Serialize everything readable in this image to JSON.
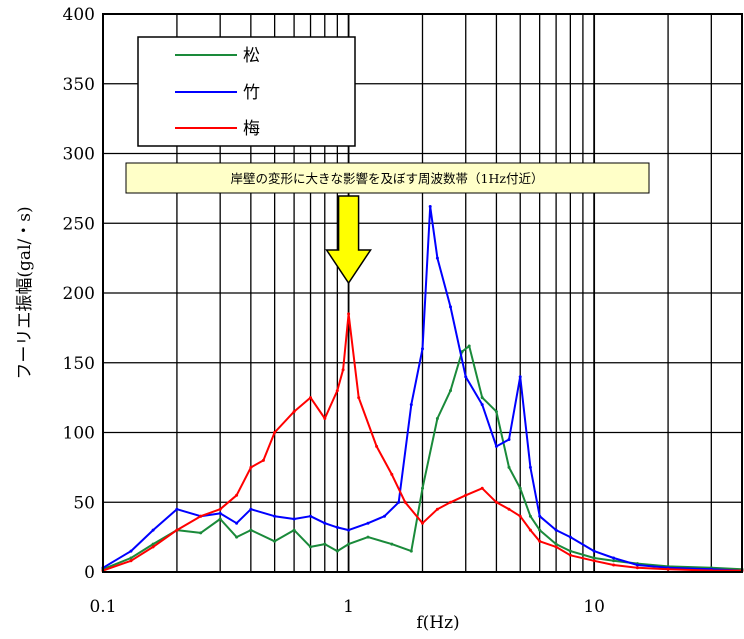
{
  "chart_data": {
    "type": "line",
    "title": "",
    "xlabel": "f(Hz)",
    "ylabel": "フーリエ振幅(gal/・s)",
    "x_scale": "log",
    "xlim": [
      0.1,
      40
    ],
    "ylim": [
      0,
      400
    ],
    "x_ticks": [
      {
        "value": 0.1,
        "label": "0.1"
      },
      {
        "value": 1,
        "label": "1"
      },
      {
        "value": 10,
        "label": "10"
      }
    ],
    "y_ticks": [
      {
        "value": 0,
        "label": "0"
      },
      {
        "value": 50,
        "label": "50"
      },
      {
        "value": 100,
        "label": "100"
      },
      {
        "value": 150,
        "label": "150"
      },
      {
        "value": 200,
        "label": "200"
      },
      {
        "value": 250,
        "label": "250"
      },
      {
        "value": 300,
        "label": "300"
      },
      {
        "value": 350,
        "label": "350"
      },
      {
        "value": 400,
        "label": "400"
      }
    ],
    "grid": true,
    "legend_position": "top-left",
    "series": [
      {
        "name": "松",
        "color": "#1a8a3a",
        "x": [
          0.1,
          0.13,
          0.16,
          0.2,
          0.25,
          0.3,
          0.35,
          0.4,
          0.5,
          0.6,
          0.7,
          0.8,
          0.9,
          1.0,
          1.2,
          1.5,
          1.8,
          2.0,
          2.3,
          2.6,
          2.9,
          3.1,
          3.5,
          4.0,
          4.5,
          5.0,
          5.5,
          6.0,
          7.0,
          8.0,
          10,
          12,
          15,
          20,
          30,
          40
        ],
        "y": [
          2,
          10,
          20,
          30,
          28,
          38,
          25,
          30,
          22,
          30,
          18,
          20,
          15,
          20,
          25,
          20,
          15,
          60,
          110,
          130,
          158,
          162,
          125,
          115,
          75,
          60,
          40,
          30,
          20,
          15,
          10,
          8,
          6,
          4,
          3,
          2
        ]
      },
      {
        "name": "竹",
        "color": "#0000ff",
        "x": [
          0.1,
          0.13,
          0.16,
          0.2,
          0.25,
          0.3,
          0.35,
          0.4,
          0.5,
          0.6,
          0.7,
          0.8,
          0.9,
          1.0,
          1.2,
          1.4,
          1.6,
          1.8,
          2.0,
          2.15,
          2.3,
          2.6,
          3.0,
          3.5,
          4.0,
          4.5,
          5.0,
          5.5,
          6.0,
          7.0,
          8.0,
          10,
          12,
          15,
          20,
          30,
          40
        ],
        "y": [
          3,
          15,
          30,
          45,
          40,
          42,
          35,
          45,
          40,
          38,
          40,
          35,
          32,
          30,
          35,
          40,
          50,
          120,
          160,
          262,
          225,
          190,
          140,
          120,
          90,
          95,
          140,
          75,
          40,
          30,
          25,
          15,
          10,
          5,
          3,
          2,
          1
        ]
      },
      {
        "name": "梅",
        "color": "#ff0000",
        "x": [
          0.1,
          0.13,
          0.16,
          0.2,
          0.25,
          0.3,
          0.35,
          0.4,
          0.45,
          0.5,
          0.6,
          0.7,
          0.8,
          0.9,
          0.95,
          1.0,
          1.1,
          1.3,
          1.5,
          1.7,
          2.0,
          2.3,
          2.6,
          3.0,
          3.5,
          4.0,
          4.5,
          5.0,
          5.5,
          6.0,
          7.0,
          8.0,
          10,
          12,
          15,
          20,
          30,
          40
        ],
        "y": [
          1,
          8,
          18,
          30,
          40,
          45,
          55,
          75,
          80,
          100,
          115,
          125,
          110,
          130,
          145,
          185,
          125,
          90,
          70,
          50,
          35,
          45,
          50,
          55,
          60,
          50,
          45,
          40,
          30,
          22,
          18,
          12,
          8,
          5,
          3,
          2,
          1,
          1
        ]
      }
    ],
    "annotations": [
      {
        "text": "岸壁の変形に大きな影響を及ぼす周波数帯（1Hz付近）",
        "x": 1,
        "arrow": "down",
        "arrow_color": "#ffff00"
      }
    ]
  }
}
